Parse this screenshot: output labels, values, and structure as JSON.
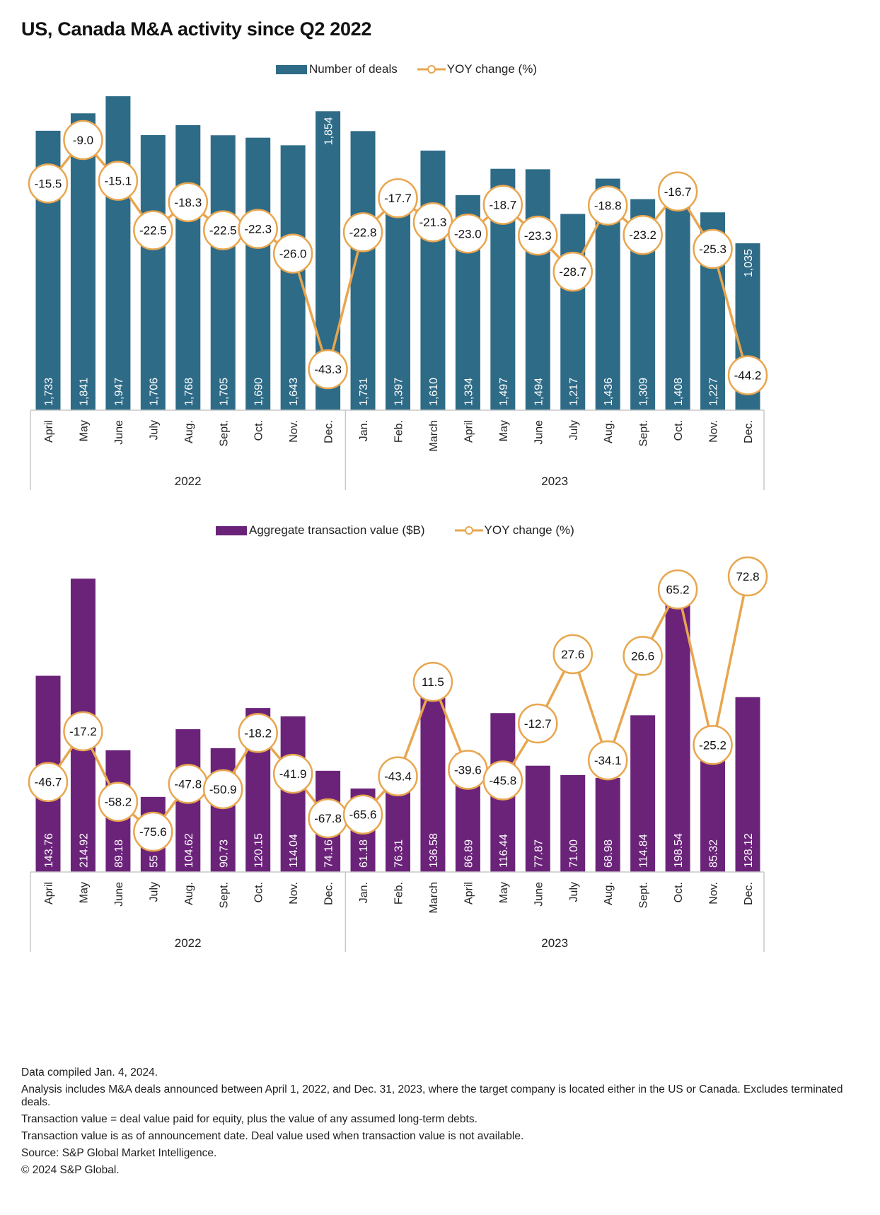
{
  "title": "US, Canada M&A activity since Q2 2022",
  "colors": {
    "deals_bar": "#2e6b87",
    "value_bar": "#6b237a",
    "yoy_line": "#e8a64f",
    "marker_fill": "#ffffff",
    "axis": "#c8c8c8"
  },
  "chart_data": [
    {
      "type": "bar",
      "combo": "bar+line",
      "title": "Number of deals and YOY change",
      "legend": [
        "Number of deals",
        "YOY change (%)"
      ],
      "legend_position": "top-center",
      "categories": [
        "April",
        "May",
        "June",
        "July",
        "Aug.",
        "Sept.",
        "Oct.",
        "Nov.",
        "Dec.",
        "Jan.",
        "Feb.",
        "March",
        "April",
        "May",
        "June",
        "July",
        "Aug.",
        "Sept.",
        "Oct.",
        "Nov.",
        "Dec."
      ],
      "groups": [
        {
          "label": "2022",
          "count": 9
        },
        {
          "label": "2023",
          "count": 12
        }
      ],
      "series": [
        {
          "name": "Number of deals",
          "type": "bar",
          "values": [
            1733,
            1841,
            1947,
            1706,
            1768,
            1705,
            1690,
            1643,
            1854,
            1731,
            1397,
            1610,
            1334,
            1497,
            1494,
            1217,
            1436,
            1309,
            1408,
            1227,
            1035
          ],
          "labels": [
            "1,733",
            "1,841",
            "1,947",
            "1,706",
            "1,768",
            "1,705",
            "1,690",
            "1,643",
            "1,854",
            "1,731",
            "1,397",
            "1,610",
            "1,334",
            "1,497",
            "1,494",
            "1,217",
            "1,436",
            "1,309",
            "1,408",
            "1,227",
            "1,035"
          ]
        },
        {
          "name": "YOY change (%)",
          "type": "line",
          "values": [
            -15.5,
            -9.0,
            -15.1,
            -22.5,
            -18.3,
            -22.5,
            -22.3,
            -26.0,
            -43.3,
            -22.8,
            -17.7,
            -21.3,
            -23.0,
            -18.7,
            -23.3,
            -28.7,
            -18.8,
            -23.2,
            -16.7,
            -25.3,
            -44.2
          ],
          "labels": [
            "-15.5",
            "-9.0",
            "-15.1",
            "-22.5",
            "-18.3",
            "-22.5",
            "-22.3",
            "-26.0",
            "-43.3",
            "-22.8",
            "-17.7",
            "-21.3",
            "-23.0",
            "-18.7",
            "-23.3",
            "-28.7",
            "-18.8",
            "-23.2",
            "-16.7",
            "-25.3",
            "-44.2"
          ]
        }
      ],
      "xlabel": "",
      "ylabel": "",
      "grid": false
    },
    {
      "type": "bar",
      "combo": "bar+line",
      "title": "Aggregate transaction value and YOY change",
      "legend": [
        "Aggregate transaction value ($B)",
        "YOY change (%)"
      ],
      "legend_position": "top-center",
      "categories": [
        "April",
        "May",
        "June",
        "July",
        "Aug.",
        "Sept.",
        "Oct.",
        "Nov.",
        "Dec.",
        "Jan.",
        "Feb.",
        "March",
        "April",
        "May",
        "June",
        "July",
        "Aug.",
        "Sept.",
        "Oct.",
        "Nov.",
        "Dec."
      ],
      "groups": [
        {
          "label": "2022",
          "count": 9
        },
        {
          "label": "2023",
          "count": 12
        }
      ],
      "series": [
        {
          "name": "Aggregate transaction value ($B)",
          "type": "bar",
          "values": [
            143.76,
            214.92,
            89.18,
            55,
            104.62,
            90.73,
            120.15,
            114.04,
            74.16,
            61.18,
            76.31,
            136.58,
            86.89,
            116.44,
            77.87,
            71.0,
            68.98,
            114.84,
            198.54,
            85.32,
            128.12
          ],
          "labels": [
            "143.76",
            "214.92",
            "89.18",
            "55",
            "104.62",
            "90.73",
            "120.15",
            "114.04",
            "74.16",
            "61.18",
            "76.31",
            "136.58",
            "86.89",
            "116.44",
            "77.87",
            "71.00",
            "68.98",
            "114.84",
            "198.54",
            "85.32",
            "128.12"
          ]
        },
        {
          "name": "YOY change (%)",
          "type": "line",
          "values": [
            -46.7,
            -17.2,
            -58.2,
            -75.6,
            -47.8,
            -50.9,
            -18.2,
            -41.9,
            -67.8,
            -65.6,
            -43.4,
            11.5,
            -39.6,
            -45.8,
            -12.7,
            27.6,
            -34.1,
            26.6,
            65.2,
            -25.2,
            72.8
          ],
          "labels": [
            "-46.7",
            "-17.2",
            "-58.2",
            "-75.6",
            "-47.8",
            "-50.9",
            "-18.2",
            "-41.9",
            "-67.8",
            "-65.6",
            "-43.4",
            "11.5",
            "-39.6",
            "-45.8",
            "-12.7",
            "27.6",
            "-34.1",
            "26.6",
            "65.2",
            "-25.2",
            "72.8"
          ]
        }
      ],
      "xlabel": "",
      "ylabel": "",
      "grid": false
    }
  ],
  "footnotes": [
    "Data compiled Jan. 4, 2024.",
    "Analysis includes M&A deals announced between April 1, 2022, and Dec. 31, 2023, where the target company is located either in the US or Canada. Excludes terminated deals.",
    "Transaction value = deal value paid for equity, plus the value of any assumed long-term debts.",
    "Transaction value is as of announcement date. Deal value used when transaction value is not available.",
    "Source: S&P Global Market Intelligence.",
    "© 2024 S&P Global."
  ]
}
